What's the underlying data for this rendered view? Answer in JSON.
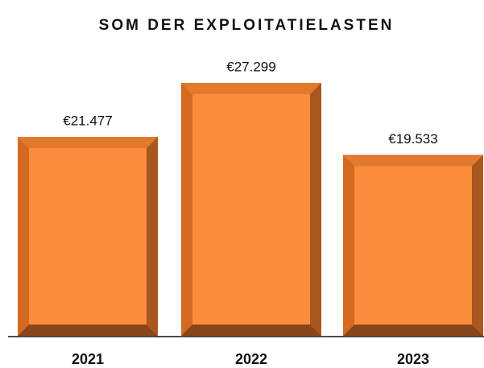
{
  "chart_data": {
    "type": "bar",
    "title": "SOM DER EXPLOITATIELASTEN",
    "categories": [
      "2021",
      "2022",
      "2023"
    ],
    "values": [
      21477,
      27299,
      19533
    ],
    "value_labels": [
      "€21.477",
      "€27.299",
      "€19.533"
    ],
    "color": "#fa8c3c"
  }
}
